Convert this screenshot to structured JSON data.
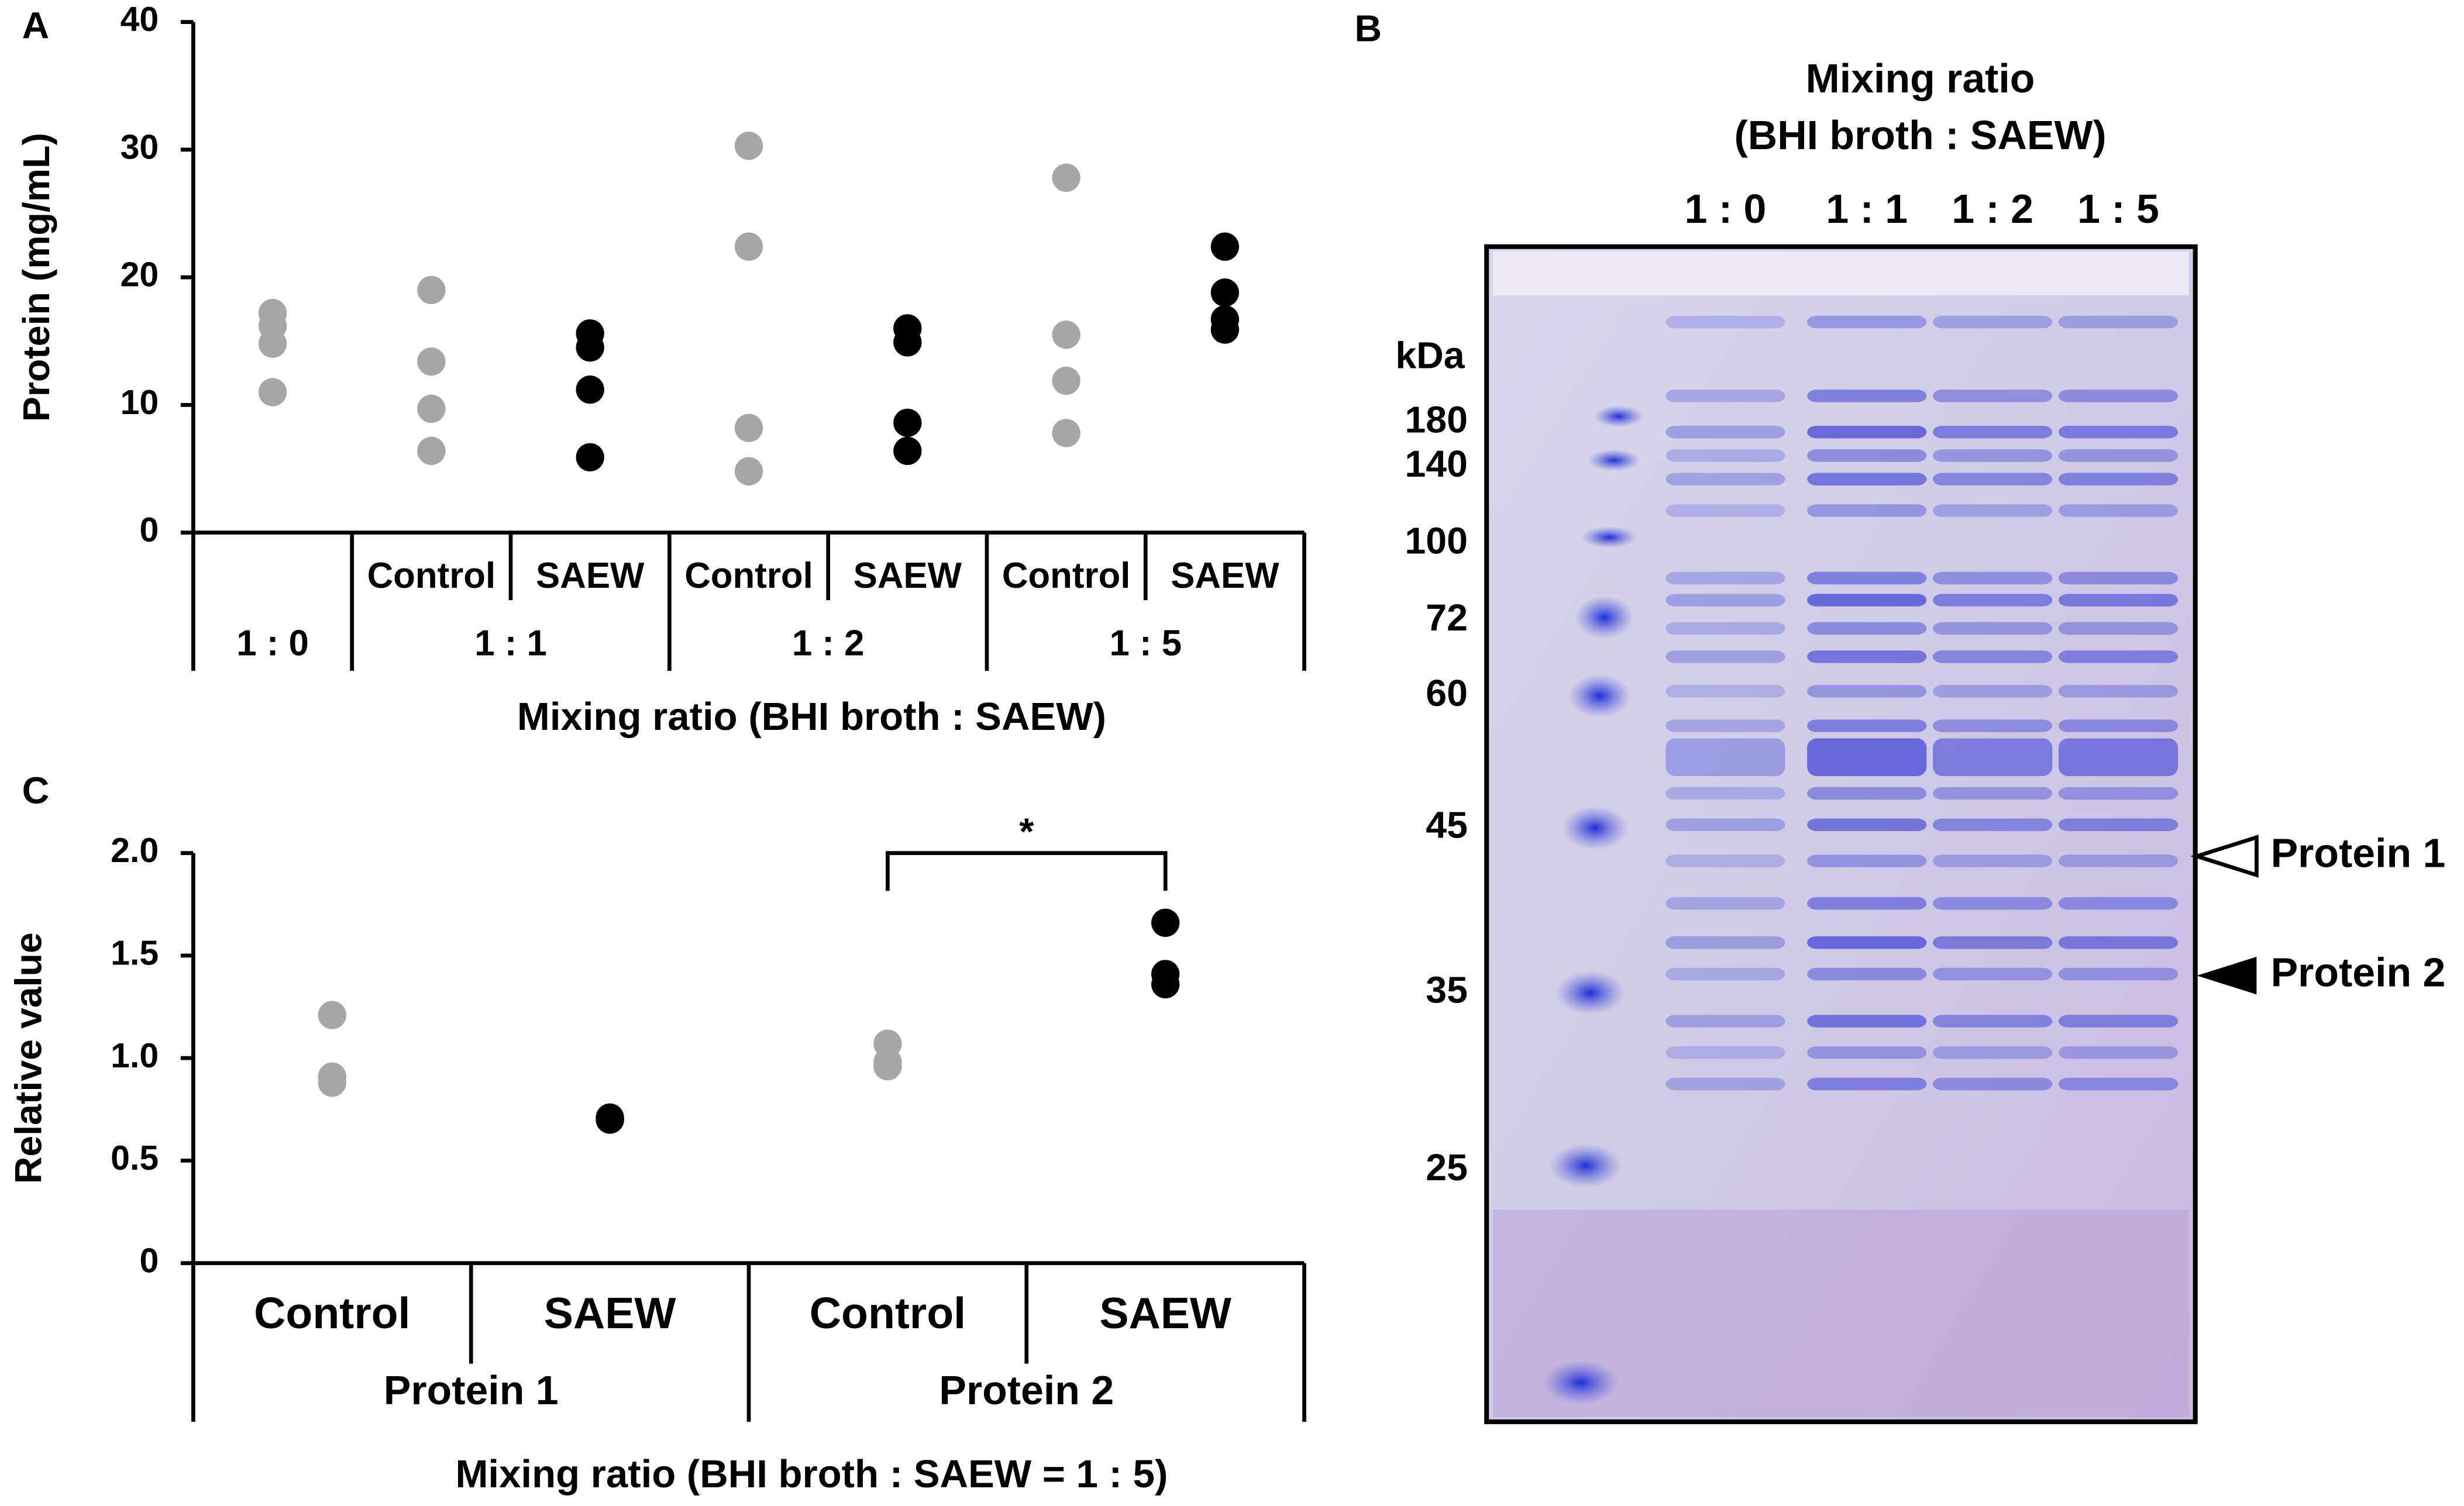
{
  "chart_data": [
    {
      "type": "strip",
      "panel": "A",
      "ylabel": "Protein (mg/mL)",
      "xlabel": "Mixing ratio (BHI broth : SAEW)",
      "ylim": [
        0,
        40
      ],
      "yticks": [
        0,
        10,
        20,
        30,
        40
      ],
      "groups": [
        {
          "name": "1 : 0",
          "categories": [
            {
              "name": null,
              "color": "#a6a6a6",
              "values": [
                17.2,
                16.2,
                14.8,
                11.0
              ]
            }
          ]
        },
        {
          "name": "1 : 1",
          "categories": [
            {
              "name": "Control",
              "color": "#a6a6a6",
              "values": [
                19.0,
                13.4,
                9.7,
                6.4
              ]
            },
            {
              "name": "SAEW",
              "color": "#000000",
              "values": [
                15.6,
                14.5,
                11.2,
                5.9
              ]
            }
          ]
        },
        {
          "name": "1 : 2",
          "categories": [
            {
              "name": "Control",
              "color": "#a6a6a6",
              "values": [
                30.3,
                22.4,
                8.2,
                4.8
              ]
            },
            {
              "name": "SAEW",
              "color": "#000000",
              "values": [
                16.0,
                14.9,
                8.6,
                6.4
              ]
            }
          ]
        },
        {
          "name": "1 : 5",
          "categories": [
            {
              "name": "Control",
              "color": "#a6a6a6",
              "values": [
                27.8,
                15.5,
                11.9,
                7.8
              ]
            },
            {
              "name": "SAEW",
              "color": "#000000",
              "values": [
                22.4,
                18.8,
                16.7,
                15.9
              ]
            }
          ]
        }
      ]
    },
    {
      "type": "strip",
      "panel": "C",
      "ylabel": "Relative value",
      "xlabel": "Mixing ratio (BHI broth : SAEW = 1 : 5)",
      "ylim": [
        0,
        2
      ],
      "yticks": [
        0,
        {
          "value": 0.5,
          "label": "0.5"
        },
        {
          "value": 1,
          "label": "1.0"
        },
        {
          "value": 1.5,
          "label": "1.5"
        },
        {
          "value": 2,
          "label": "2.0"
        }
      ],
      "annotation": "*",
      "groups": [
        {
          "name": "Protein 1",
          "categories": [
            {
              "name": "Control",
              "color": "#a6a6a6",
              "values": [
                1.21,
                0.91,
                0.88
              ]
            },
            {
              "name": "SAEW",
              "color": "#000000",
              "values": [
                0.71,
                0.7,
                0.7
              ]
            }
          ]
        },
        {
          "name": "Protein 2",
          "categories": [
            {
              "name": "Control",
              "color": "#a6a6a6",
              "values": [
                1.07,
                0.98,
                0.96
              ]
            },
            {
              "name": "SAEW",
              "color": "#000000",
              "values": [
                1.66,
                1.41,
                1.36
              ]
            }
          ]
        }
      ]
    }
  ],
  "gel": {
    "panel": "B",
    "title": "Mixing ratio",
    "subtitle": "(BHI broth : SAEW)",
    "lanes": [
      "1 : 0",
      "1 : 1",
      "1 : 2",
      "1 : 5"
    ],
    "unit": "kDa",
    "markers": [
      180,
      140,
      100,
      72,
      60,
      45,
      35,
      25
    ],
    "arrows": [
      "Protein 1",
      "Protein 2"
    ]
  }
}
